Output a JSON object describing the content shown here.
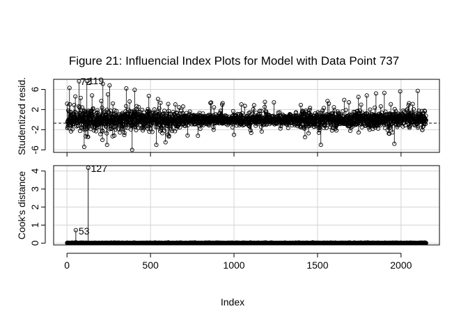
{
  "title": "Figure 21: Influencial Index Plots for Model with Data Point 737",
  "chart_data": [
    {
      "type": "scatter",
      "style": "needle",
      "xlabel": "",
      "ylabel": "Studentized resid.",
      "xlim": [
        -80,
        2230
      ],
      "ylim": [
        -6.5,
        8.0
      ],
      "xticks": [
        0,
        500,
        1000,
        1500,
        2000
      ],
      "yticks": [
        -6,
        -2,
        2,
        6
      ],
      "ytick_labels": [
        "-6",
        "-2",
        "2",
        "6"
      ],
      "reference_line": {
        "y": 0,
        "style": "dashed"
      },
      "grid": true,
      "n_points": 2150,
      "labeled_points": [
        {
          "label": "72",
          "x": 72,
          "y": 7.6
        },
        {
          "label": "119",
          "x": 119,
          "y": 7.7
        }
      ],
      "notable_points": [
        {
          "x": 15,
          "y": 6.3
        },
        {
          "x": 50,
          "y": 4.6
        },
        {
          "x": 82,
          "y": 4.3
        },
        {
          "x": 103,
          "y": -5.4
        },
        {
          "x": 150,
          "y": 4.8
        },
        {
          "x": 205,
          "y": 3.7
        },
        {
          "x": 215,
          "y": 7.1
        },
        {
          "x": 240,
          "y": -5.0
        },
        {
          "x": 245,
          "y": 5.0
        },
        {
          "x": 255,
          "y": 6.8
        },
        {
          "x": 275,
          "y": 3.2
        },
        {
          "x": 355,
          "y": 6.2
        },
        {
          "x": 375,
          "y": 3.6
        },
        {
          "x": 390,
          "y": -6.0
        },
        {
          "x": 405,
          "y": 5.9
        },
        {
          "x": 490,
          "y": 4.7
        },
        {
          "x": 535,
          "y": -5.0
        },
        {
          "x": 545,
          "y": 4.1
        },
        {
          "x": 590,
          "y": -4.5
        },
        {
          "x": 695,
          "y": 2.6
        },
        {
          "x": 1000,
          "y": -3.0
        },
        {
          "x": 1400,
          "y": 2.9
        },
        {
          "x": 1520,
          "y": -5.0
        },
        {
          "x": 1560,
          "y": 3.7
        },
        {
          "x": 1660,
          "y": 3.9
        },
        {
          "x": 1745,
          "y": 4.5
        },
        {
          "x": 1795,
          "y": 4.8
        },
        {
          "x": 1850,
          "y": 5.2
        },
        {
          "x": 1900,
          "y": 5.3
        },
        {
          "x": 1960,
          "y": -4.8
        },
        {
          "x": 1995,
          "y": 5.6
        },
        {
          "x": 2100,
          "y": 5.7
        },
        {
          "x": 2045,
          "y": 2.9
        }
      ]
    },
    {
      "type": "scatter",
      "style": "needle",
      "xlabel": "Index",
      "ylabel": "Cook's distance",
      "xlim": [
        -80,
        2230
      ],
      "ylim": [
        -0.1,
        4.3
      ],
      "xticks": [
        0,
        500,
        1000,
        1500,
        2000
      ],
      "xtick_labels": [
        "0",
        "500",
        "1000",
        "1500",
        "2000"
      ],
      "yticks": [
        0,
        1,
        2,
        3,
        4
      ],
      "ytick_labels": [
        "0",
        "1",
        "2",
        "3",
        "4"
      ],
      "grid": true,
      "n_points": 2150,
      "labeled_points": [
        {
          "label": "127",
          "x": 127,
          "y": 4.18
        },
        {
          "label": "53",
          "x": 53,
          "y": 0.72
        }
      ]
    }
  ]
}
